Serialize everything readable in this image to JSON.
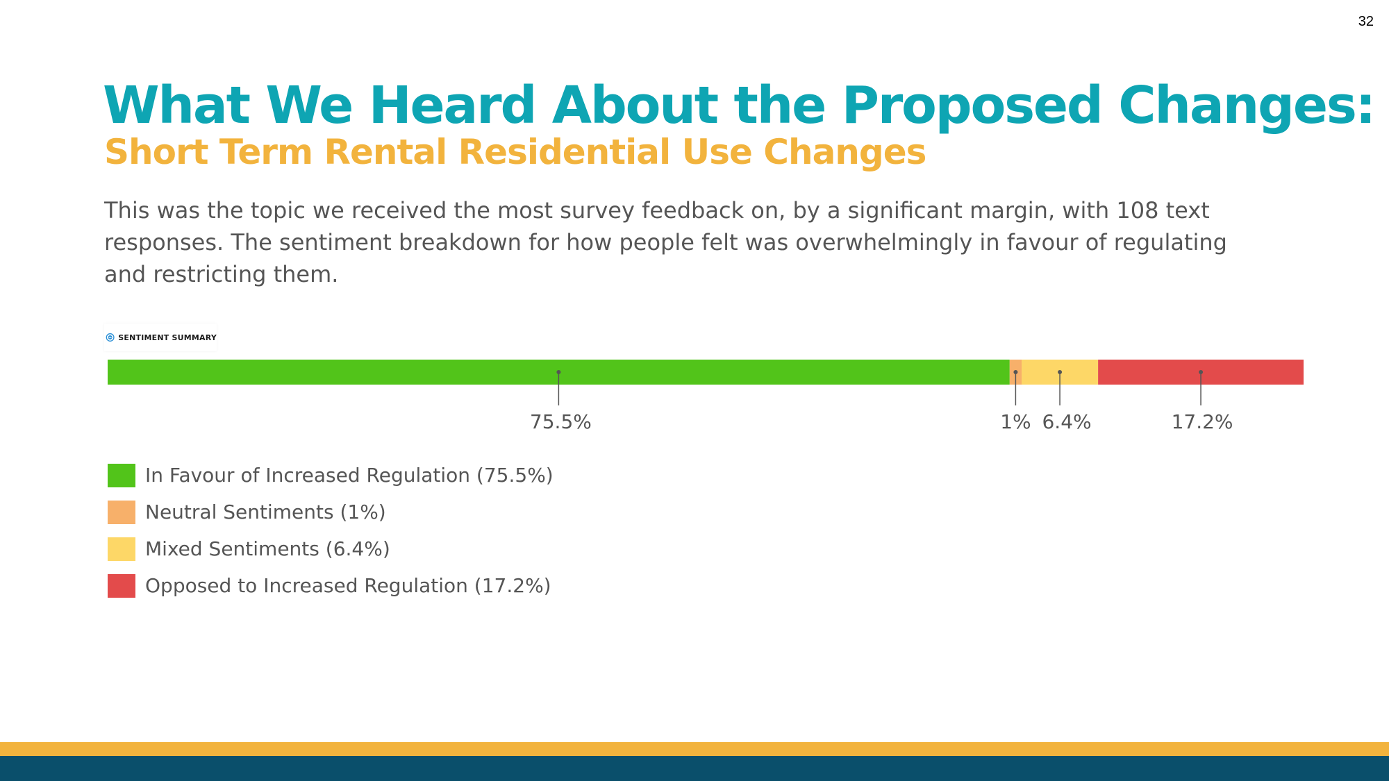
{
  "page_number": "32",
  "title": "What We Heard About the Proposed Changes:",
  "subtitle": "Short Term Rental Residential Use Changes",
  "description": "This was the topic we received the most survey feedback on, by a significant margin, with 108 text responses. The sentiment breakdown for how people felt was overwhelmingly in favour of regulating and restricting them.",
  "summary_header": {
    "label": "SENTIMENT SUMMARY",
    "icon": "sentiment-logo-icon"
  },
  "colors": {
    "title": "#0ea5b3",
    "subtitle": "#f2b33d",
    "footer_gold": "#f2b33d",
    "footer_blue": "#0a4f6b",
    "text": "#555555"
  },
  "chart_data": {
    "type": "stacked-bar",
    "orientation": "horizontal",
    "unit": "%",
    "segments": [
      {
        "label": "In Favour of Increased Regulation (75.5%)",
        "value": 75.5,
        "value_label": "75.5%",
        "color": "#52c41a"
      },
      {
        "label": "Neutral Sentiments (1%)",
        "value": 1,
        "value_label": "1%",
        "color": "#f7b06a"
      },
      {
        "label": "Mixed Sentiments (6.4%)",
        "value": 6.4,
        "value_label": "6.4%",
        "color": "#fdd767"
      },
      {
        "label": "Opposed to Increased Regulation (17.2%)",
        "value": 17.2,
        "value_label": "17.2%",
        "color": "#e34b4b"
      }
    ]
  }
}
